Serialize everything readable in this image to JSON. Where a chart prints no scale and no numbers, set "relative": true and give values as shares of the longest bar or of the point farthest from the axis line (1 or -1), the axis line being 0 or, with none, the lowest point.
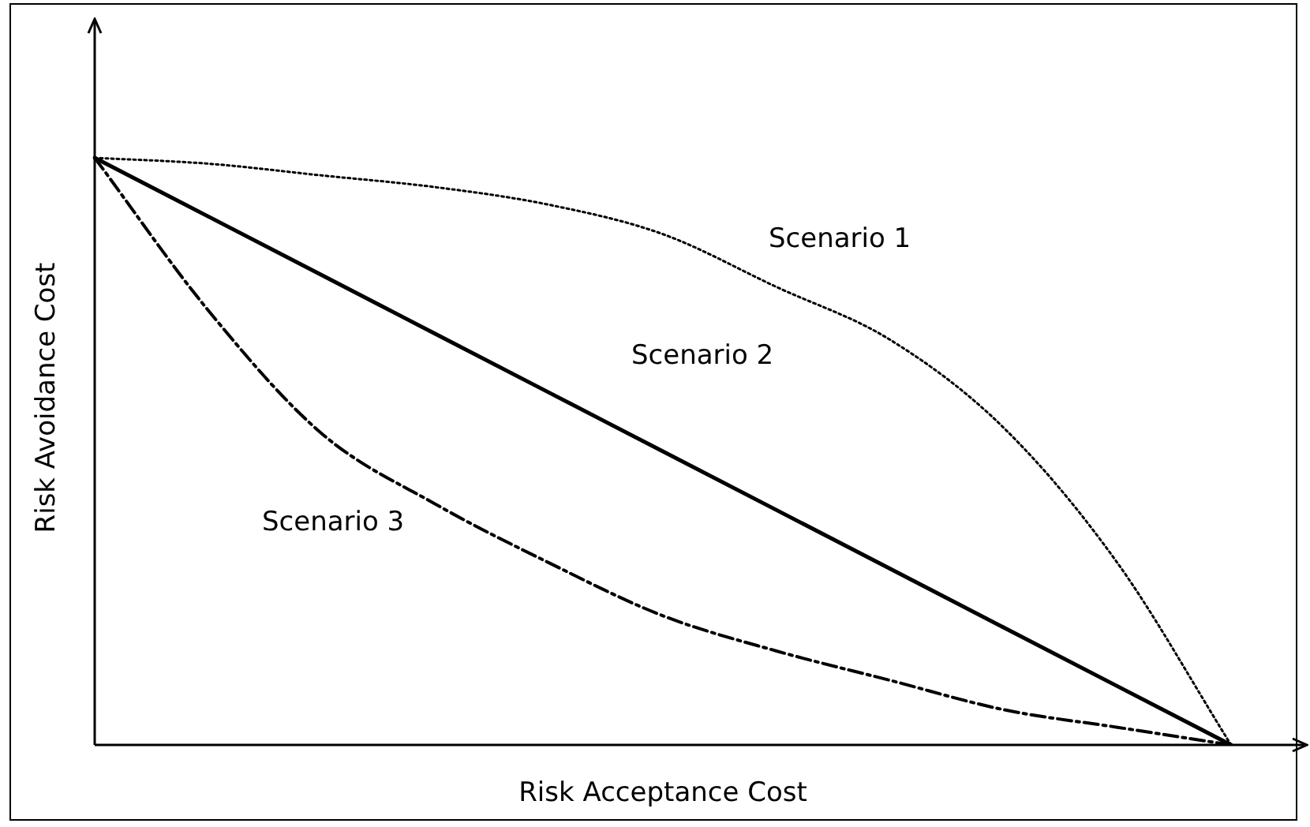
{
  "chart_data": {
    "type": "line",
    "relative": true,
    "xlabel": "Risk Acceptance Cost",
    "ylabel": "Risk Avoidance Cost",
    "categories": [
      null,
      null,
      null,
      null,
      null,
      null,
      null,
      null,
      null,
      null,
      null
    ],
    "series": [
      {
        "name": "Scenario 1",
        "color": "#000000",
        "line_style": "dotted",
        "values": [
          1,
          0.99,
          0.97,
          0.95,
          0.92,
          0.87,
          0.78,
          0.69,
          0.54,
          0.31,
          0
        ]
      },
      {
        "name": "Scenario 2",
        "color": "#000000",
        "line_style": "solid",
        "values": [
          1,
          0.9,
          0.8,
          0.7,
          0.6,
          0.5,
          0.4,
          0.3,
          0.2,
          0.1,
          0
        ]
      },
      {
        "name": "Scenario 3",
        "color": "#000000",
        "line_style": "dashed",
        "values": [
          1,
          0.74,
          0.53,
          0.41,
          0.31,
          0.22,
          0.16,
          0.11,
          0.06,
          0.03,
          0
        ]
      }
    ],
    "legend": false,
    "marker": "none"
  }
}
